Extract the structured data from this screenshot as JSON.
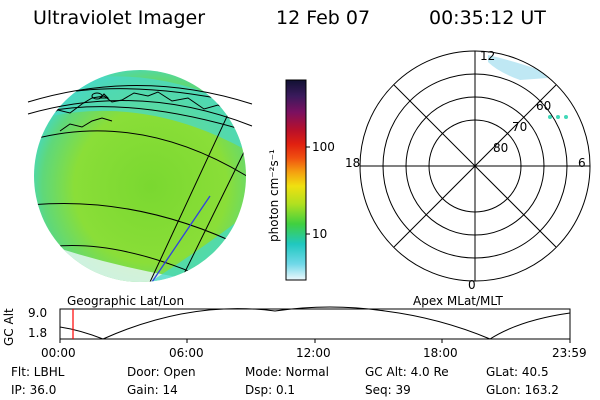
{
  "header": {
    "instrument": "Ultraviolet Imager",
    "date": "12 Feb 07",
    "time": "00:35:12 UT"
  },
  "colorbar": {
    "unit_label": "photon cm⁻²s⁻¹",
    "ticks": [
      "100",
      "10"
    ],
    "colors": [
      "#111133",
      "#3a1a5c",
      "#7a1060",
      "#b8102a",
      "#e02010",
      "#f05010",
      "#f5a010",
      "#f0e010",
      "#b0e020",
      "#40d040",
      "#20c8c0",
      "#70d8e8",
      "#d8f0f8"
    ]
  },
  "geo_panel": {
    "label": "Geographic Lat/Lon",
    "fill_color": "#7ad830",
    "edge_color": "#40d8d0"
  },
  "polar_panel": {
    "label": "Apex MLat/MLT",
    "mlt_labels": {
      "top": "12",
      "left": "18",
      "right": "6",
      "bottom": "0"
    },
    "lat_labels": [
      "60",
      "70",
      "80"
    ]
  },
  "orbit_plot": {
    "ylabel": "GC Alt",
    "yticks": [
      "9.0",
      "1.8"
    ],
    "xticks": [
      "00:00",
      "06:00",
      "12:00",
      "18:00",
      "23:59"
    ],
    "current_time_color": "#ff0000"
  },
  "info": {
    "flt": "Flt: LBHL",
    "door": "Door: Open",
    "mode": "Mode: Normal",
    "gc_alt": "GC Alt: 4.0 Re",
    "glat": "GLat:  40.5",
    "ip": "IP: 36.0",
    "gain": "Gain: 14",
    "dsp": "Dsp:    0.1",
    "seq": "Seq: 39",
    "glon": "GLon: 163.2"
  }
}
